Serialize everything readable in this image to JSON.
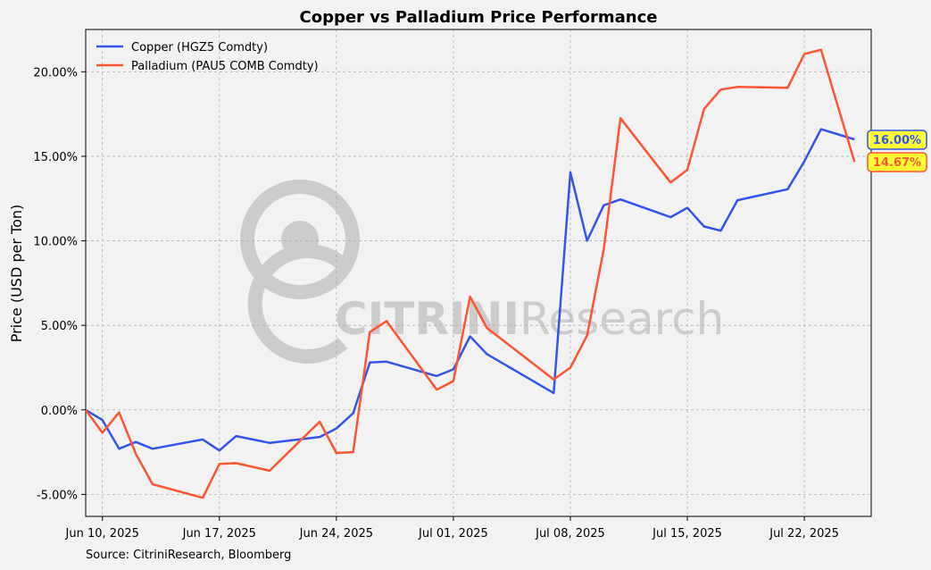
{
  "chart_data": {
    "type": "line",
    "title": "Copper vs Palladium Price Performance",
    "ylabel": "Price (USD per Ton)",
    "xlabel": "",
    "source": "Source: CitriniResearch, Bloomberg",
    "watermark": {
      "strong": "CITRINI",
      "light": "Research"
    },
    "ylim": [
      -6.3,
      22.5
    ],
    "yticks": [
      -5,
      0,
      5,
      10,
      15,
      20
    ],
    "yticklabels": [
      "-5.00%",
      "0.00%",
      "5.00%",
      "10.00%",
      "15.00%",
      "20.00%"
    ],
    "xlim": [
      "2025-06-09",
      "2025-07-26"
    ],
    "xticks": [
      "2025-06-10",
      "2025-06-17",
      "2025-06-24",
      "2025-07-01",
      "2025-07-08",
      "2025-07-15",
      "2025-07-22"
    ],
    "xticklabels": [
      "Jun 10, 2025",
      "Jun 17, 2025",
      "Jun 24, 2025",
      "Jul 01, 2025",
      "Jul 08, 2025",
      "Jul 15, 2025",
      "Jul 22, 2025"
    ],
    "grid": true,
    "legend_position": "top-left",
    "x": [
      "2025-06-09",
      "2025-06-10",
      "2025-06-11",
      "2025-06-12",
      "2025-06-13",
      "2025-06-16",
      "2025-06-17",
      "2025-06-18",
      "2025-06-20",
      "2025-06-23",
      "2025-06-24",
      "2025-06-25",
      "2025-06-26",
      "2025-06-27",
      "2025-06-30",
      "2025-07-01",
      "2025-07-02",
      "2025-07-03",
      "2025-07-07",
      "2025-07-08",
      "2025-07-09",
      "2025-07-10",
      "2025-07-11",
      "2025-07-14",
      "2025-07-15",
      "2025-07-16",
      "2025-07-17",
      "2025-07-18",
      "2025-07-21",
      "2025-07-22",
      "2025-07-23",
      "2025-07-25"
    ],
    "series": [
      {
        "name": "Copper (HGZ5 Comdty)",
        "color": "#3355ee",
        "end_label": "16.00%",
        "values": [
          0.0,
          -0.6,
          -2.3,
          -1.9,
          -2.3,
          -1.75,
          -2.4,
          -1.55,
          -1.95,
          -1.6,
          -1.1,
          -0.2,
          2.8,
          2.85,
          2.0,
          2.4,
          4.35,
          3.3,
          1.0,
          14.05,
          10.0,
          12.1,
          12.45,
          11.4,
          11.95,
          10.85,
          10.6,
          12.4,
          13.05,
          14.7,
          16.6,
          16.0
        ]
      },
      {
        "name": "Palladium (PAU5 COMB Comdty)",
        "color": "#ff5533",
        "end_label": "14.67%",
        "values": [
          0.0,
          -1.35,
          -0.15,
          -2.6,
          -4.4,
          -5.2,
          -3.2,
          -3.15,
          -3.6,
          -0.7,
          -2.55,
          -2.5,
          4.6,
          5.25,
          1.2,
          1.7,
          6.7,
          4.85,
          1.8,
          2.5,
          4.4,
          9.5,
          17.25,
          13.45,
          14.2,
          17.8,
          18.95,
          19.1,
          19.05,
          21.05,
          21.3,
          14.67
        ]
      }
    ]
  }
}
